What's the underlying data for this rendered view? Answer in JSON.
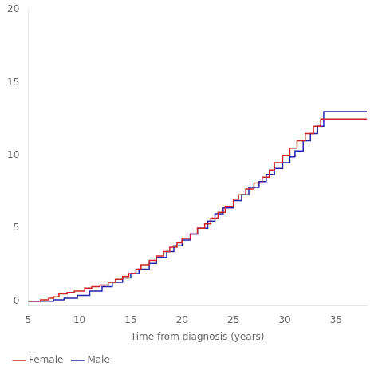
{
  "chart_data": {
    "type": "step",
    "xlabel": "Time from diagnosis (years)",
    "xlim": [
      5,
      38
    ],
    "ylim": [
      -0.3,
      20
    ],
    "xticks": [
      5,
      10,
      15,
      20,
      25,
      30,
      35
    ],
    "yticks": [
      0,
      5,
      10,
      15,
      20
    ],
    "grid": false,
    "legend": "bottom left",
    "series": [
      {
        "name": "Female",
        "color": "#cc2222",
        "x": [
          5.0,
          6.2,
          7.0,
          7.5,
          8.0,
          8.8,
          9.5,
          10.5,
          11.2,
          12.0,
          12.8,
          13.5,
          14.2,
          14.8,
          15.5,
          16.0,
          16.8,
          17.5,
          18.2,
          18.8,
          19.5,
          20.0,
          20.8,
          21.5,
          22.2,
          22.8,
          23.5,
          24.2,
          25.0,
          25.5,
          26.2,
          27.0,
          27.8,
          28.5,
          29.0,
          29.8,
          30.5,
          31.2,
          32.0,
          32.8,
          33.5,
          38.0
        ],
        "values": [
          0.0,
          0.1,
          0.2,
          0.3,
          0.5,
          0.6,
          0.7,
          0.9,
          1.0,
          1.1,
          1.3,
          1.5,
          1.7,
          1.9,
          2.2,
          2.5,
          2.8,
          3.1,
          3.4,
          3.7,
          4.0,
          4.3,
          4.6,
          5.0,
          5.3,
          5.7,
          6.1,
          6.5,
          7.0,
          7.3,
          7.7,
          8.1,
          8.5,
          9.0,
          9.5,
          10.0,
          10.5,
          11.0,
          11.5,
          12.0,
          12.5,
          12.5
        ]
      },
      {
        "name": "Male",
        "color": "#2222aa",
        "x": [
          5.0,
          7.5,
          8.5,
          9.8,
          11.0,
          12.2,
          13.2,
          14.2,
          15.0,
          15.8,
          16.8,
          17.5,
          18.5,
          19.2,
          20.0,
          20.8,
          21.5,
          22.5,
          23.2,
          24.0,
          25.0,
          25.8,
          26.5,
          27.5,
          28.2,
          29.0,
          29.8,
          30.5,
          31.0,
          31.8,
          32.5,
          33.2,
          33.8,
          38.0
        ],
        "values": [
          0.0,
          0.1,
          0.2,
          0.4,
          0.7,
          1.0,
          1.3,
          1.6,
          1.9,
          2.2,
          2.6,
          3.0,
          3.4,
          3.8,
          4.2,
          4.6,
          5.0,
          5.5,
          6.0,
          6.4,
          6.9,
          7.3,
          7.8,
          8.2,
          8.7,
          9.1,
          9.5,
          9.9,
          10.3,
          11.0,
          11.5,
          12.0,
          13.0,
          13.0
        ]
      }
    ]
  }
}
